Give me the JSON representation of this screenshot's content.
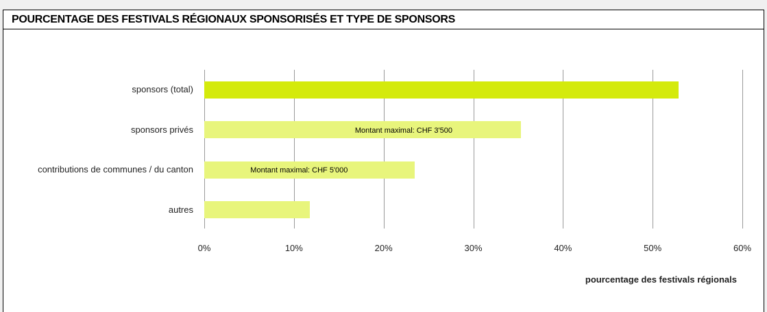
{
  "chart_data": {
    "type": "barh",
    "title": "POURCENTAGE DES FESTIVALS RÉGIONAUX SPONSORISÉS ET TYPE DE SPONSORS",
    "categories": [
      "sponsors (total)",
      "sponsors privés",
      "contributions de communes / du canton",
      "autres"
    ],
    "values": [
      52.9,
      35.3,
      23.5,
      11.8
    ],
    "colors": [
      "#d4ea0c",
      "#e8f57c",
      "#e8f57c",
      "#e8f57c"
    ],
    "bar_labels": [
      null,
      "Montant maximal: CHF 3'500",
      "Montant maximal: CHF 5'000",
      null
    ],
    "xlabel": "pourcentage des festivals régionals",
    "xlim": [
      0,
      60
    ],
    "xticks": [
      {
        "value": 0,
        "label": "0%"
      },
      {
        "value": 10,
        "label": "10%"
      },
      {
        "value": 20,
        "label": "20%"
      },
      {
        "value": 30,
        "label": "30%"
      },
      {
        "value": 40,
        "label": "40%"
      },
      {
        "value": 50,
        "label": "50%"
      },
      {
        "value": 60,
        "label": "60%"
      }
    ],
    "grid": true
  }
}
